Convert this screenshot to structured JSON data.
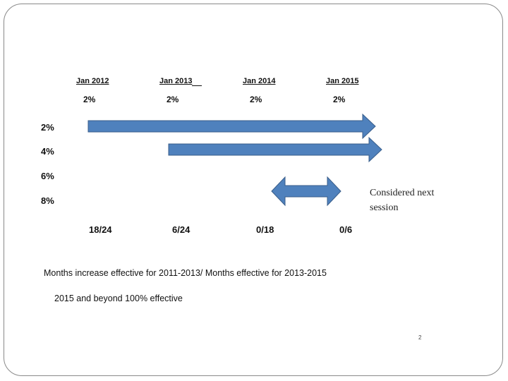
{
  "timeline": {
    "years": [
      {
        "label": "Jan 2012",
        "rate": "2%"
      },
      {
        "label": "Jan 2013",
        "rate": "2%"
      },
      {
        "label": "Jan 2014",
        "rate": "2%"
      },
      {
        "label": "Jan 2015",
        "rate": "2%"
      }
    ],
    "rows": [
      "2%",
      "4%",
      "6%",
      "8%"
    ],
    "months": [
      "18/24",
      "6/24",
      "0/18",
      "0/6"
    ]
  },
  "arrows": [
    {
      "row": "2%",
      "from": "Jan 2012",
      "to": "Jan 2015",
      "direction": "right"
    },
    {
      "row": "4%",
      "from": "Jan 2013",
      "to": "Jan 2015",
      "direction": "right"
    },
    {
      "row": "8%",
      "from": "Jan 2014",
      "to": "Jan 2015",
      "direction": "both"
    }
  ],
  "note": "Considered next session",
  "footer": {
    "line1": "Months increase effective for  2011-2013/ Months effective for 2013-2015",
    "line2": "2015 and beyond 100% effective"
  },
  "page_number": "2",
  "colors": {
    "arrow_fill": "#4f81bd",
    "arrow_stroke": "#385d8a",
    "border": "#8a8a8a"
  }
}
